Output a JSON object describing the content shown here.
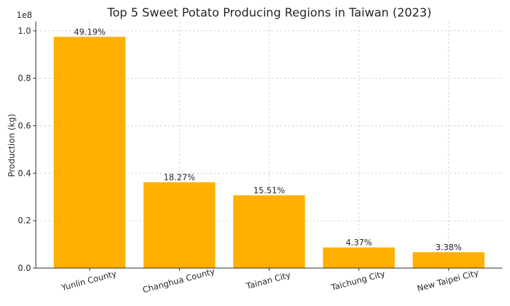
{
  "chart_data": {
    "type": "bar",
    "title": "Top 5 Sweet Potato Producing Regions in Taiwan (2023)",
    "xlabel": "",
    "ylabel": "Production (kg)",
    "y_offset_label": "1e8",
    "ylim": [
      0,
      104000000.0
    ],
    "yticks": [
      0,
      20000000,
      40000000,
      60000000,
      80000000,
      100000000
    ],
    "ytick_labels": [
      "0.0",
      "0.2",
      "0.4",
      "0.6",
      "0.8",
      "1.0"
    ],
    "categories": [
      "Yunlin County",
      "Changhua County",
      "Tainan City",
      "Taichung City",
      "New Taipei City"
    ],
    "values": [
      97500000,
      36200000,
      30700000,
      8700000,
      6700000
    ],
    "data_labels": [
      "49.19%",
      "18.27%",
      "15.51%",
      "4.37%",
      "3.38%"
    ],
    "bar_color": "#FFB000",
    "grid": true
  }
}
